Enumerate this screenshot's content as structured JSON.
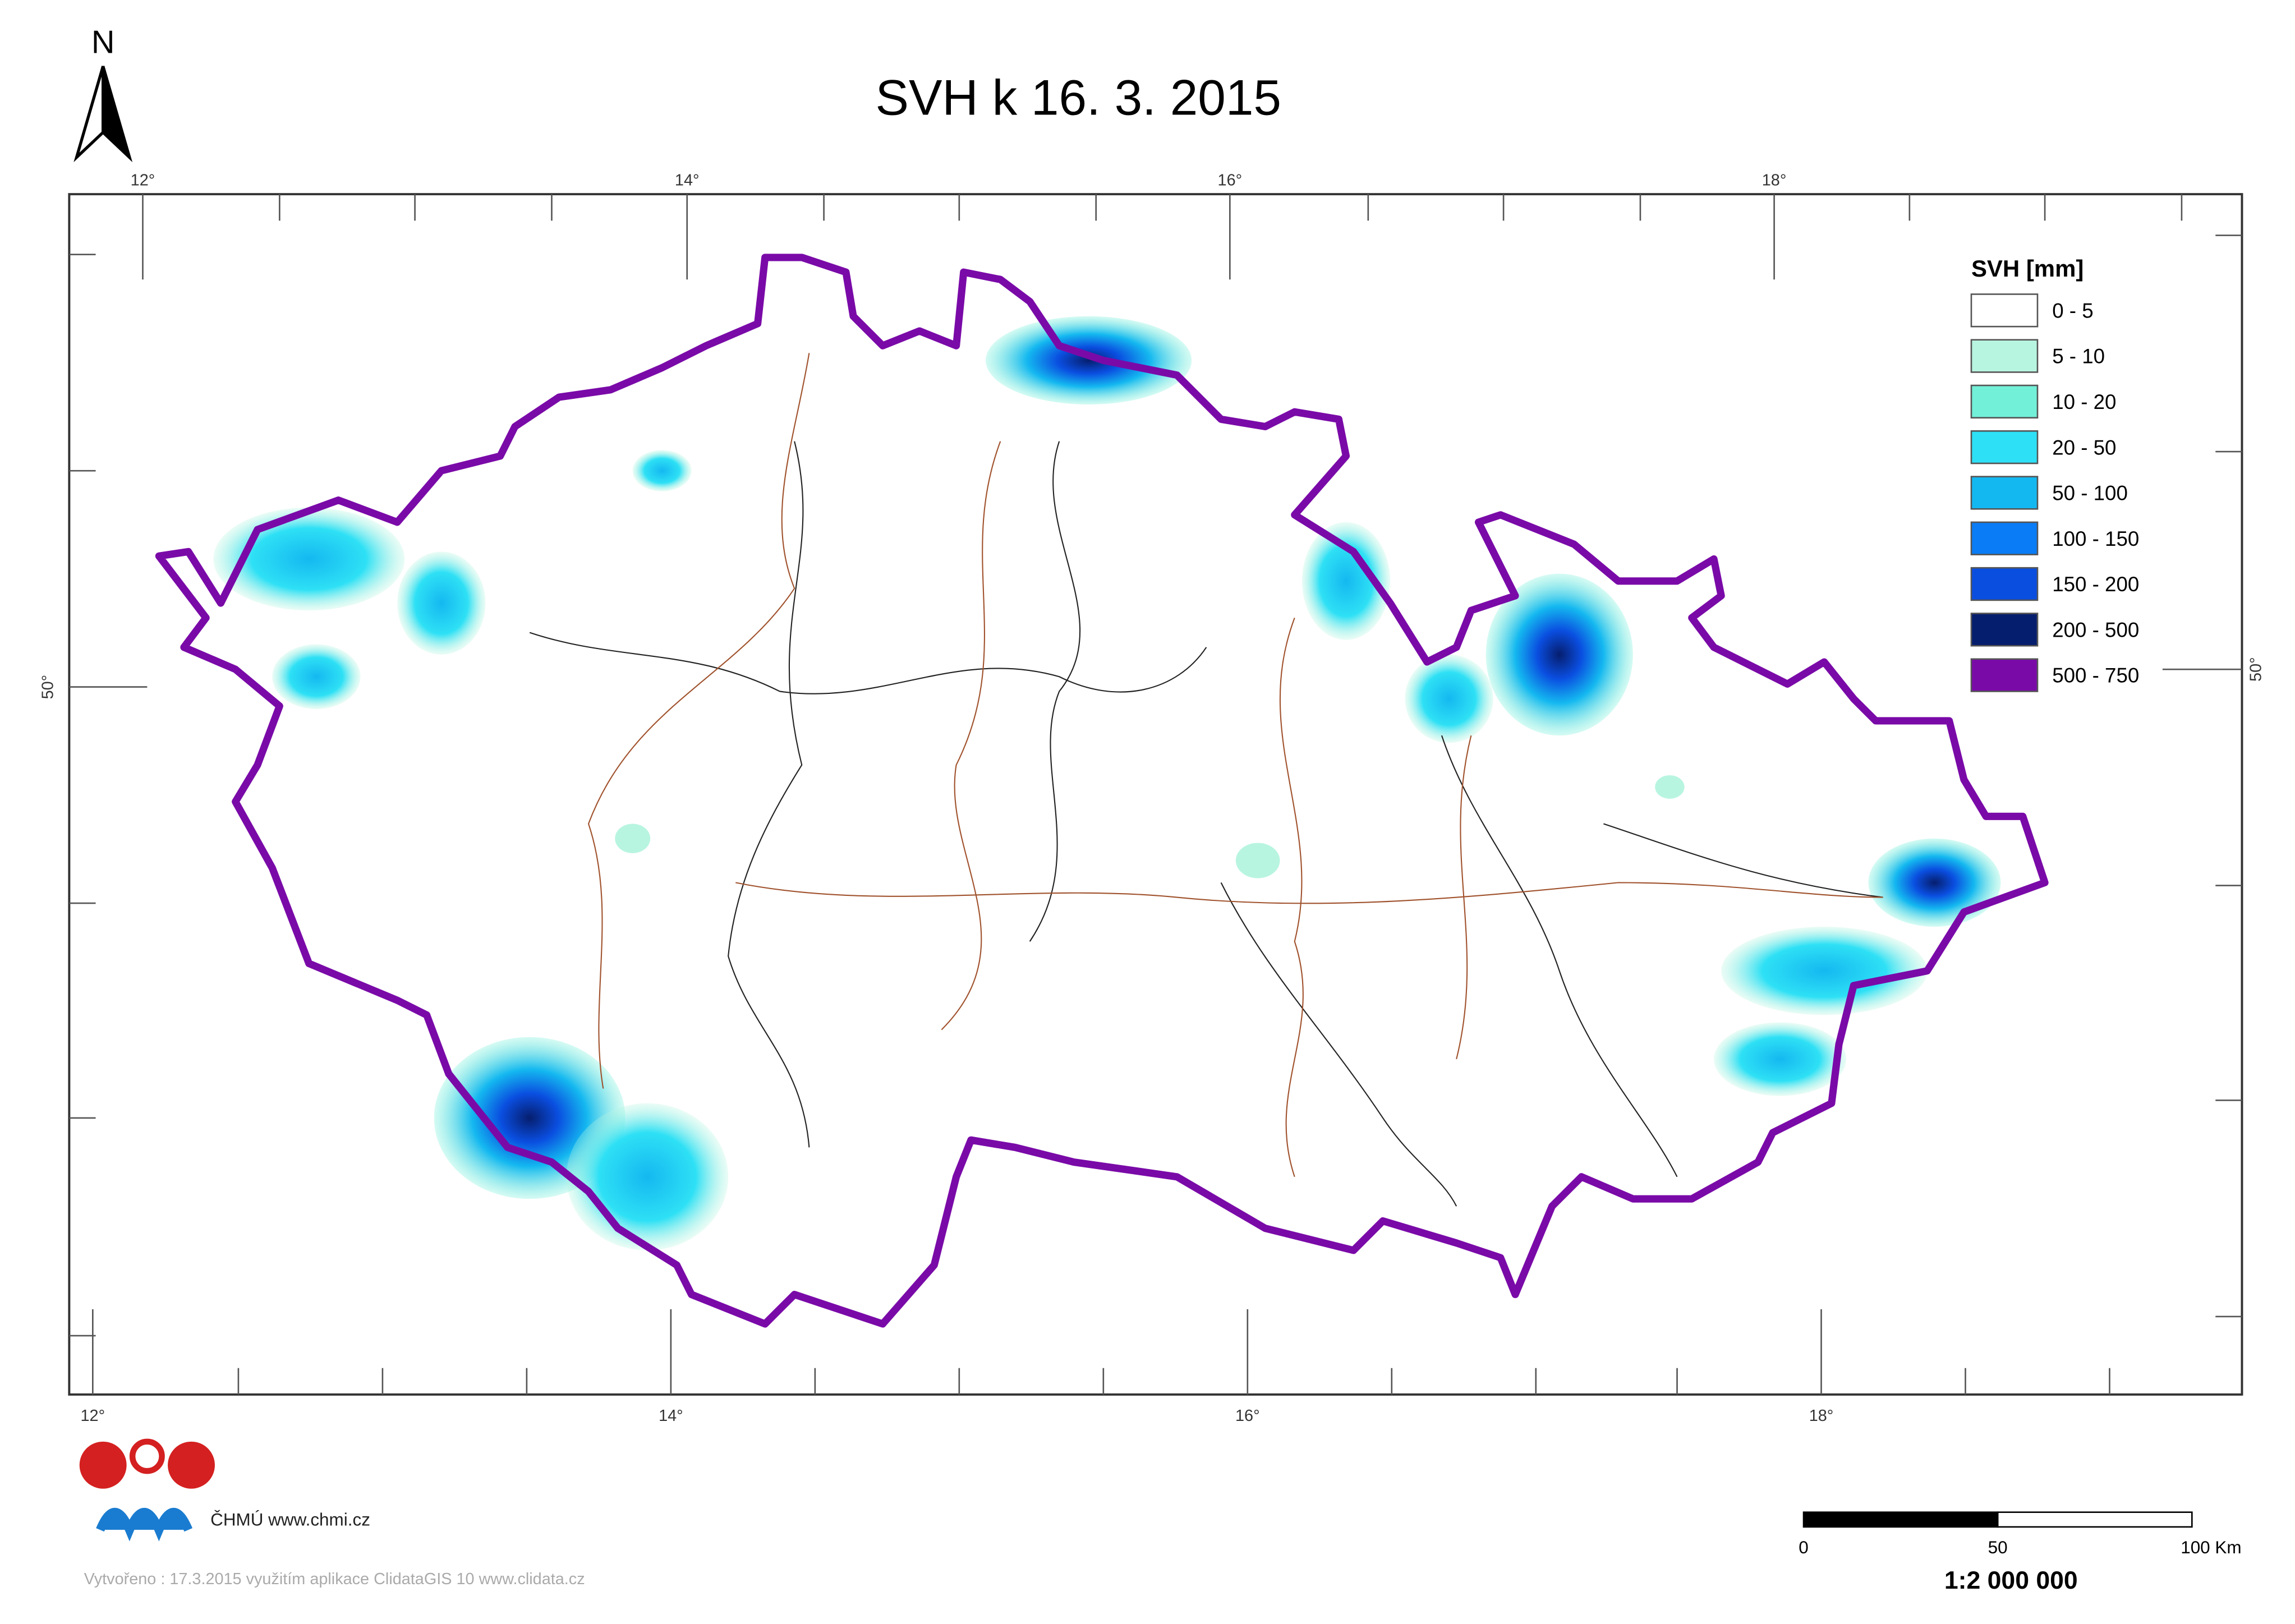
{
  "title": "SVH k 16. 3. 2015",
  "north_arrow": "N",
  "graticule": {
    "top": [
      "12°",
      "14°",
      "16°",
      "18°"
    ],
    "bottom": [
      "12°",
      "14°",
      "16°",
      "18°"
    ],
    "left": [
      "50°"
    ],
    "right": [
      "50°"
    ]
  },
  "legend": {
    "title": "SVH [mm]",
    "items": [
      {
        "label": "0 - 5",
        "color": "#ffffff"
      },
      {
        "label": "5 - 10",
        "color": "#b8f5e0"
      },
      {
        "label": "10 - 20",
        "color": "#73f0d8"
      },
      {
        "label": "20 - 50",
        "color": "#2ee0f5"
      },
      {
        "label": "50 - 100",
        "color": "#14b8f0"
      },
      {
        "label": "100 - 150",
        "color": "#0a7cf5"
      },
      {
        "label": "150 - 200",
        "color": "#0a4ee0"
      },
      {
        "label": "200 - 500",
        "color": "#061e6e"
      },
      {
        "label": "500 - 750",
        "color": "#7a0aa8"
      }
    ]
  },
  "logo_text": "ČHMÚ www.chmi.cz",
  "credit": "Vytvořeno : 17.3.2015 využitím aplikace ClidataGIS 10 www.clidata.cz",
  "scale_bar": {
    "labels": [
      "0",
      "50",
      "100 Km"
    ],
    "ratio": "1:2 000 000"
  }
}
